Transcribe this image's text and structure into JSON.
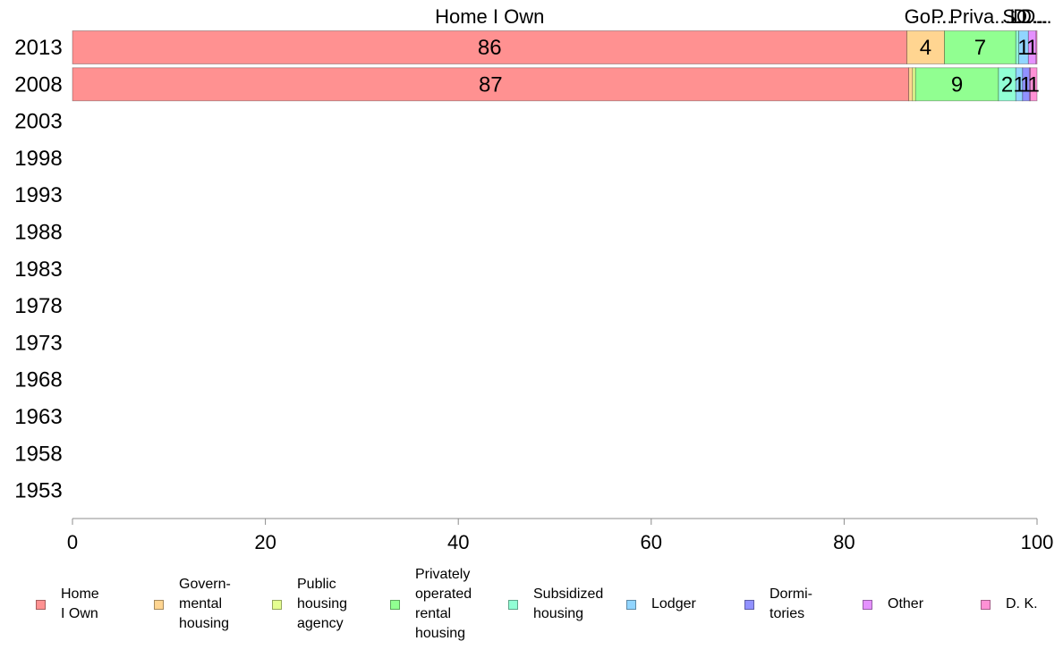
{
  "chart_data": {
    "type": "bar",
    "orientation": "horizontal",
    "stacked": true,
    "categories": [
      "2013",
      "2008",
      "2003",
      "1998",
      "1993",
      "1988",
      "1983",
      "1978",
      "1973",
      "1968",
      "1963",
      "1958",
      "1953"
    ],
    "xlim": [
      0,
      100
    ],
    "x_ticks": [
      "0",
      "20",
      "40",
      "60",
      "80",
      "100"
    ],
    "grid": false,
    "legend_position": "bottom",
    "top_labels": [
      "Home I Own",
      "Go...",
      "P...",
      "Priva...",
      "S...",
      "L...",
      "D...",
      "O...",
      "D..."
    ],
    "series": [
      {
        "name": "Home I Own",
        "legend_label": "Home\nI Own",
        "color": "#ff9191",
        "values": [
          86.5,
          86.7,
          null,
          null,
          null,
          null,
          null,
          null,
          null,
          null,
          null,
          null,
          null
        ],
        "data_labels": [
          "86",
          "87"
        ]
      },
      {
        "name": "Governmental housing",
        "legend_label": "Govern-\nmental\n housing",
        "color": "#ffd591",
        "values": [
          3.9,
          0.4,
          null,
          null,
          null,
          null,
          null,
          null,
          null,
          null,
          null,
          null,
          null
        ],
        "data_labels": [
          "4",
          ""
        ]
      },
      {
        "name": "Public housing agency",
        "legend_label": "Public\nhousing\nagency",
        "color": "#e5ff91",
        "values": [
          0.0,
          0.3,
          null,
          null,
          null,
          null,
          null,
          null,
          null,
          null,
          null,
          null,
          null
        ],
        "data_labels": [
          "",
          ""
        ]
      },
      {
        "name": "Privately operated rental housing",
        "legend_label": "Privately\noperated\nrental\nhousing",
        "color": "#91ff91",
        "values": [
          7.4,
          8.6,
          null,
          null,
          null,
          null,
          null,
          null,
          null,
          null,
          null,
          null,
          null
        ],
        "data_labels": [
          "7",
          "9"
        ]
      },
      {
        "name": "Subsidized housing",
        "legend_label": "Subsidized\n housing",
        "color": "#91ffd5",
        "values": [
          0.3,
          1.8,
          null,
          null,
          null,
          null,
          null,
          null,
          null,
          null,
          null,
          null,
          null
        ],
        "data_labels": [
          "",
          "2"
        ]
      },
      {
        "name": "Lodger",
        "legend_label": "Lodger",
        "color": "#91d5ff",
        "values": [
          1.0,
          0.7,
          null,
          null,
          null,
          null,
          null,
          null,
          null,
          null,
          null,
          null,
          null
        ],
        "data_labels": [
          "1",
          "1"
        ]
      },
      {
        "name": "Dormitories",
        "legend_label": "Dormi-\ntories",
        "color": "#9191ff",
        "values": [
          0.0,
          0.7,
          null,
          null,
          null,
          null,
          null,
          null,
          null,
          null,
          null,
          null,
          null
        ],
        "data_labels": [
          "",
          "1"
        ]
      },
      {
        "name": "Other",
        "legend_label": "Other",
        "color": "#e591ff",
        "values": [
          0.8,
          0.1,
          null,
          null,
          null,
          null,
          null,
          null,
          null,
          null,
          null,
          null,
          null
        ],
        "data_labels": [
          "1",
          ""
        ]
      },
      {
        "name": "D. K.",
        "legend_label": "D. K.",
        "color": "#ff91d5",
        "values": [
          0.1,
          0.7,
          null,
          null,
          null,
          null,
          null,
          null,
          null,
          null,
          null,
          null,
          null
        ],
        "data_labels": [
          "",
          "1"
        ]
      }
    ]
  }
}
